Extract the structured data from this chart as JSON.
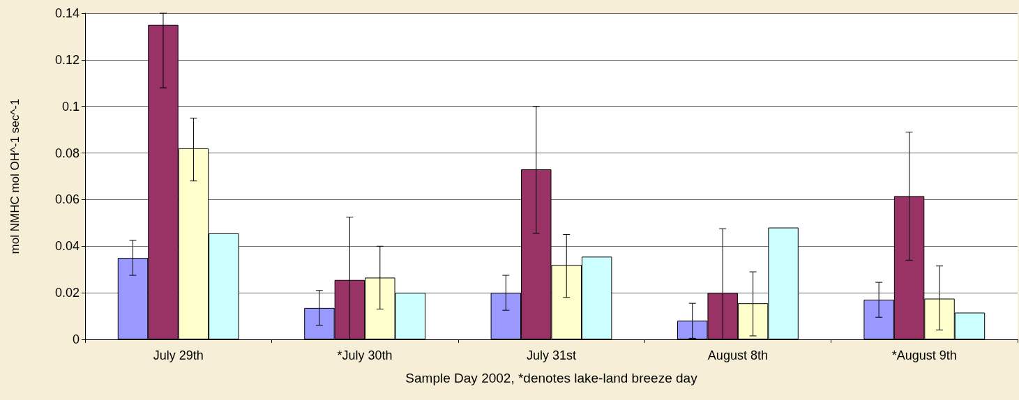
{
  "chart_data": {
    "type": "bar",
    "xlabel": "Sample Day 2002, *denotes lake-land breeze day",
    "ylabel": "mol NMHC mol OH^-1 sec^-1",
    "categories": [
      "July 29th",
      "*July 30th",
      "July 31st",
      "August 8th",
      "*August 9th"
    ],
    "series": [
      {
        "color": "#9999ff",
        "values": [
          0.035,
          0.0135,
          0.02,
          0.008,
          0.017
        ],
        "errors": [
          [
            0.0275,
            0.0425
          ],
          [
            0.006,
            0.021
          ],
          [
            0.0125,
            0.0275
          ],
          [
            0.0005,
            0.0155
          ],
          [
            0.0095,
            0.0245
          ]
        ]
      },
      {
        "color": "#993366",
        "values": [
          0.135,
          0.0255,
          0.073,
          0.02,
          0.0615
        ],
        "errors": [
          [
            0.108,
            0.14
          ],
          [
            0,
            0.0525
          ],
          [
            0.0455,
            0.1
          ],
          [
            0,
            0.0475
          ],
          [
            0.034,
            0.089
          ]
        ]
      },
      {
        "color": "#ffffcc",
        "values": [
          0.082,
          0.0265,
          0.032,
          0.0155,
          0.0175
        ],
        "errors": [
          [
            0.068,
            0.095
          ],
          [
            0.013,
            0.04
          ],
          [
            0.018,
            0.045
          ],
          [
            0.0015,
            0.029
          ],
          [
            0.004,
            0.0315
          ]
        ]
      },
      {
        "color": "#ccffff",
        "values": [
          0.0455,
          0.02,
          0.0355,
          0.048,
          0.0115
        ]
      }
    ],
    "ylim": [
      0,
      0.14
    ],
    "yticks": [
      0,
      0.02,
      0.04,
      0.06,
      0.08,
      0.1,
      0.12,
      0.14
    ],
    "grid": "y"
  }
}
